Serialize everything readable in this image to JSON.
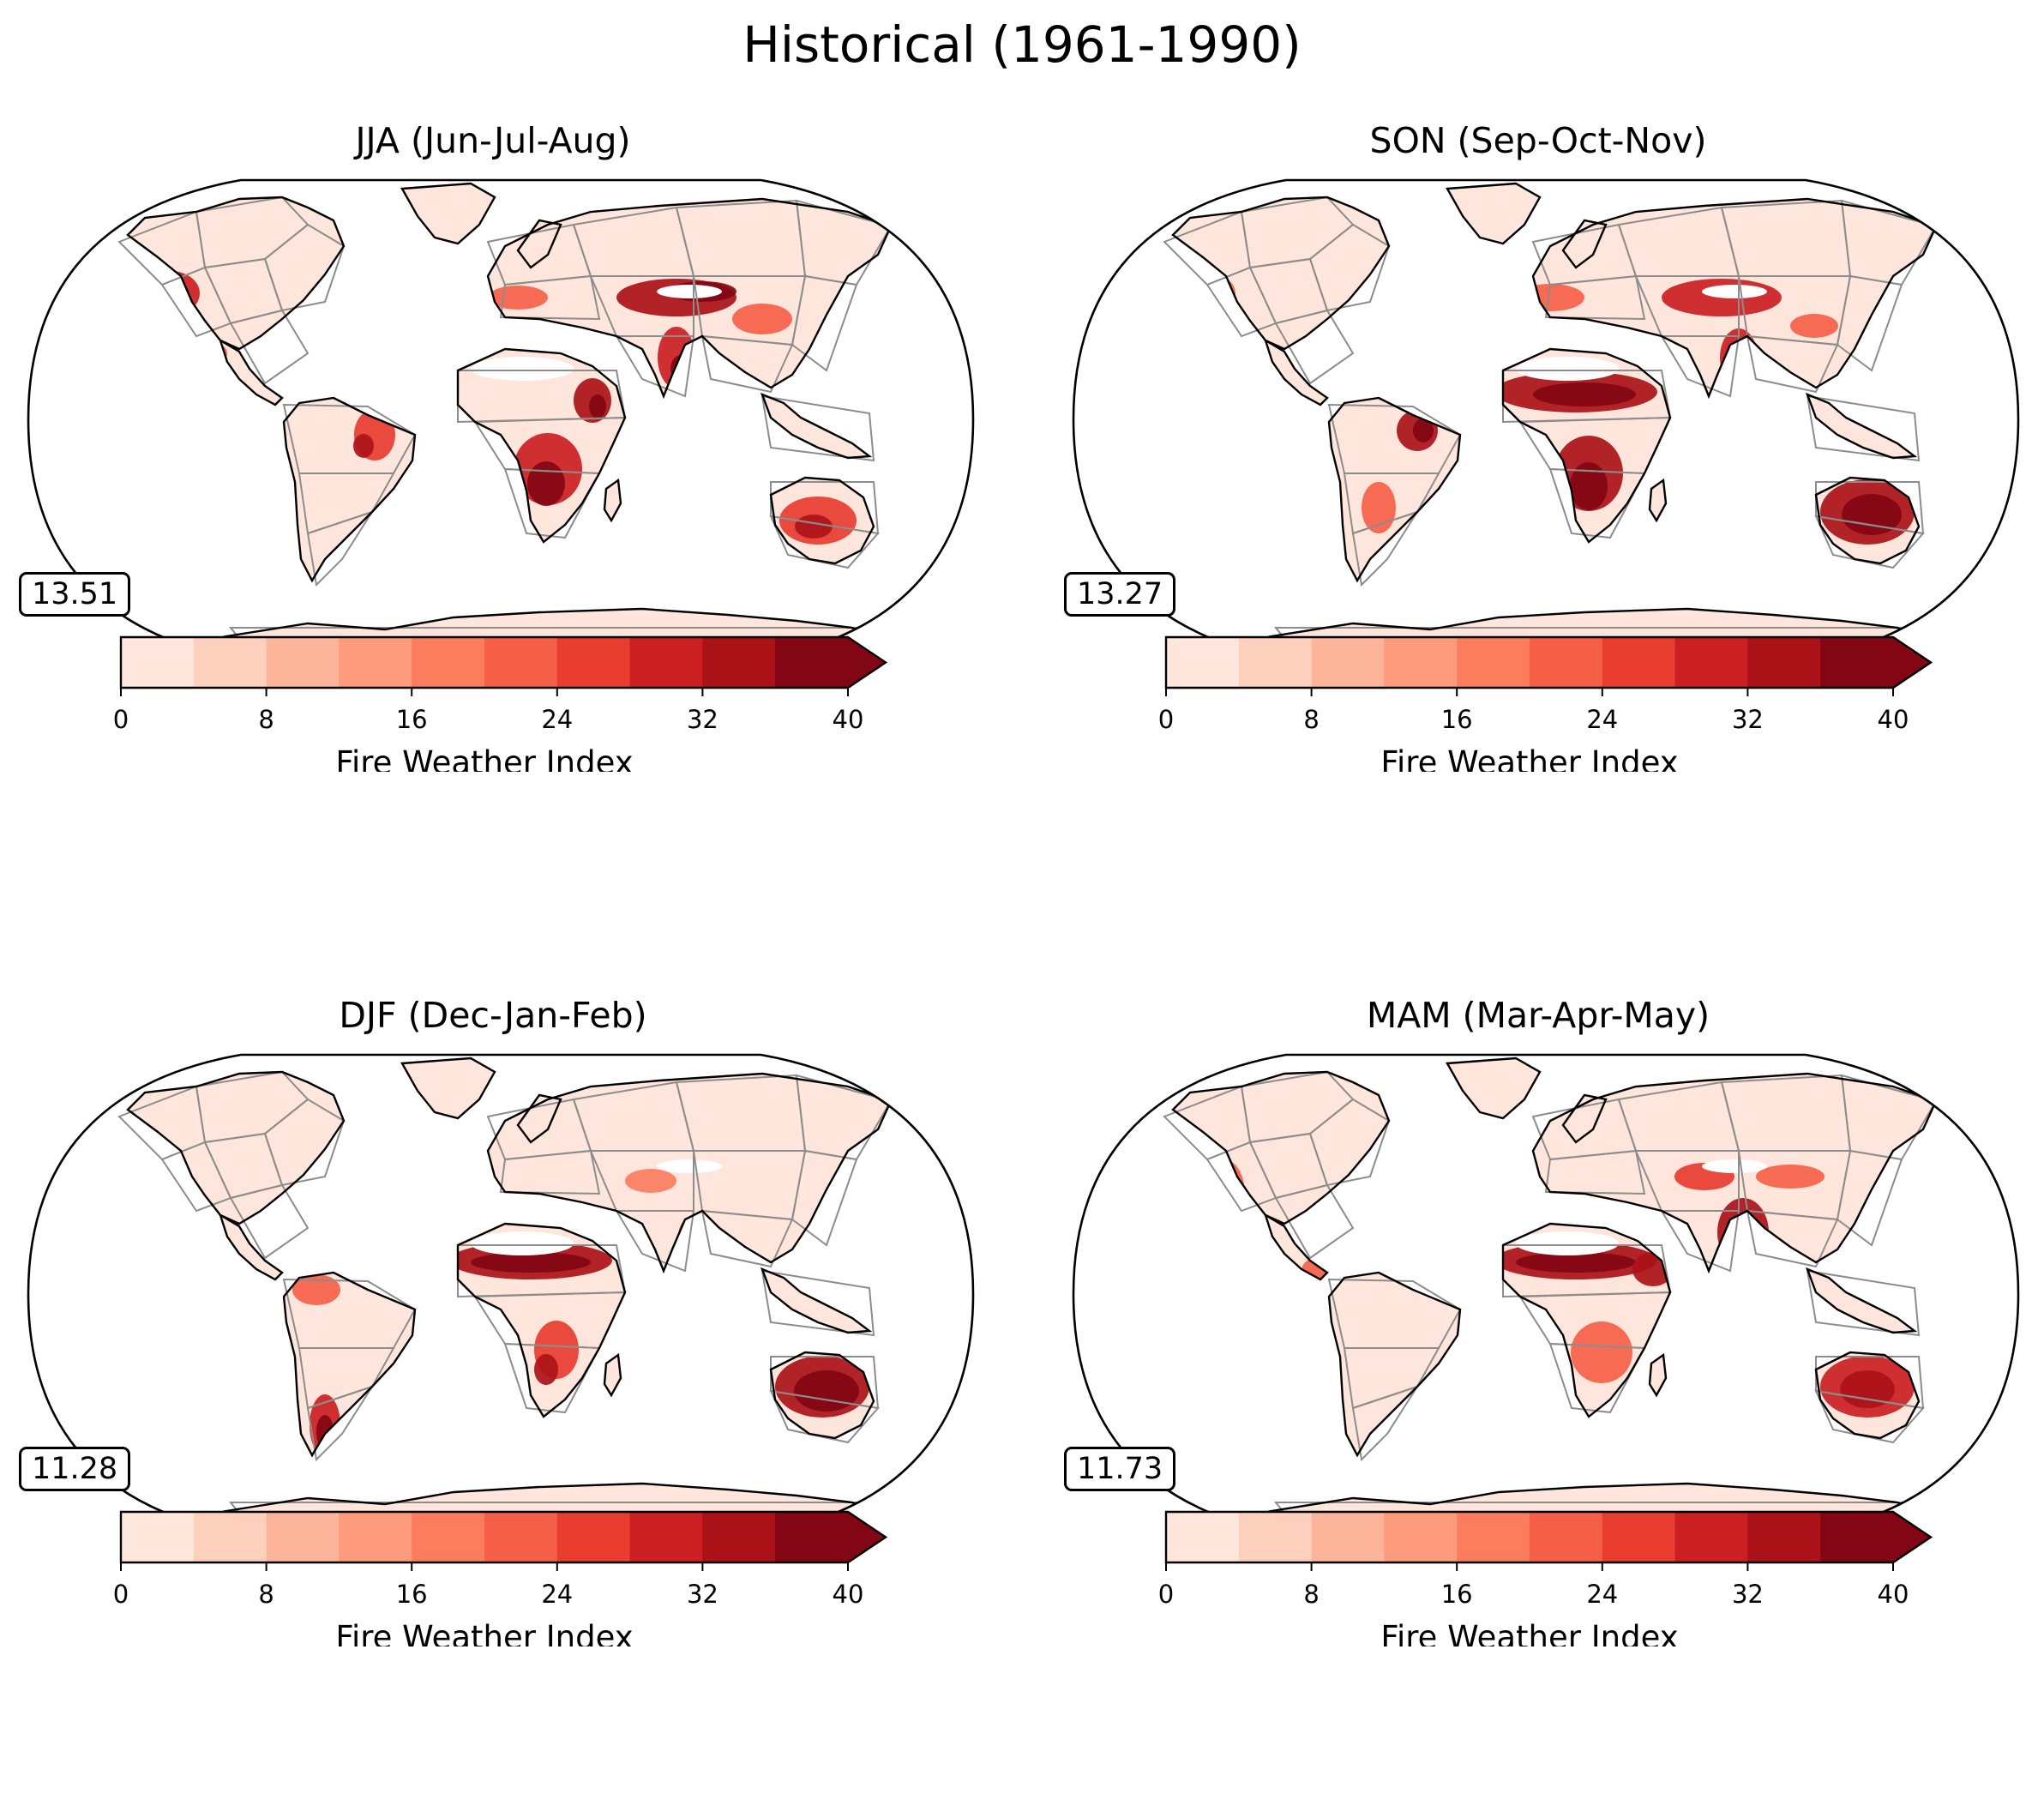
{
  "suptitle": "Historical (1961-1990)",
  "colors": {
    "levels": [
      "#fee6dc",
      "#fdd0bd",
      "#fcb59b",
      "#fc9a7b",
      "#fb7d5d",
      "#f65f47",
      "#e83d2f",
      "#cc1f22",
      "#ab1218",
      "#820613"
    ],
    "land": "#fee6dc",
    "outline": "#000000",
    "regions": "#8c8c8c"
  },
  "colorbar": {
    "label": "Fire Weather Index",
    "ticks": [
      "0",
      "8",
      "16",
      "24",
      "32",
      "40"
    ],
    "range": [
      0,
      40
    ],
    "step": 4,
    "extend": "max"
  },
  "panels": [
    {
      "title": "JJA (Jun-Jul-Aug)",
      "mean": "13.51",
      "hotspots": [
        {
          "region": "Western United States / Mexico",
          "level": 9
        },
        {
          "region": "Central Asia / Middle East",
          "level": 9
        },
        {
          "region": "India",
          "level": 7
        },
        {
          "region": "Horn of Africa",
          "level": 8
        },
        {
          "region": "Southern Africa",
          "level": 9
        },
        {
          "region": "Eastern Brazil",
          "level": 6
        },
        {
          "region": "Southern Australia",
          "level": 7
        }
      ]
    },
    {
      "title": "SON (Sep-Oct-Nov)",
      "mean": "13.27",
      "hotspots": [
        {
          "region": "Sahel",
          "level": 8
        },
        {
          "region": "Southern Africa",
          "level": 9
        },
        {
          "region": "Eastern Brazil",
          "level": 8
        },
        {
          "region": "Australia",
          "level": 9
        },
        {
          "region": "Middle East / Central Asia",
          "level": 8
        },
        {
          "region": "India",
          "level": 7
        }
      ]
    },
    {
      "title": "DJF (Dec-Jan-Feb)",
      "mean": "11.28",
      "hotspots": [
        {
          "region": "Sahel",
          "level": 9
        },
        {
          "region": "Australia",
          "level": 9
        },
        {
          "region": "Argentina",
          "level": 8
        },
        {
          "region": "Southern Africa",
          "level": 7
        },
        {
          "region": "India",
          "level": 6
        }
      ]
    },
    {
      "title": "MAM (Mar-Apr-May)",
      "mean": "11.73",
      "hotspots": [
        {
          "region": "Sahel",
          "level": 9
        },
        {
          "region": "India",
          "level": 9
        },
        {
          "region": "Australia",
          "level": 8
        },
        {
          "region": "Horn of Africa",
          "level": 8
        },
        {
          "region": "Mexico",
          "level": 6
        }
      ]
    }
  ]
}
